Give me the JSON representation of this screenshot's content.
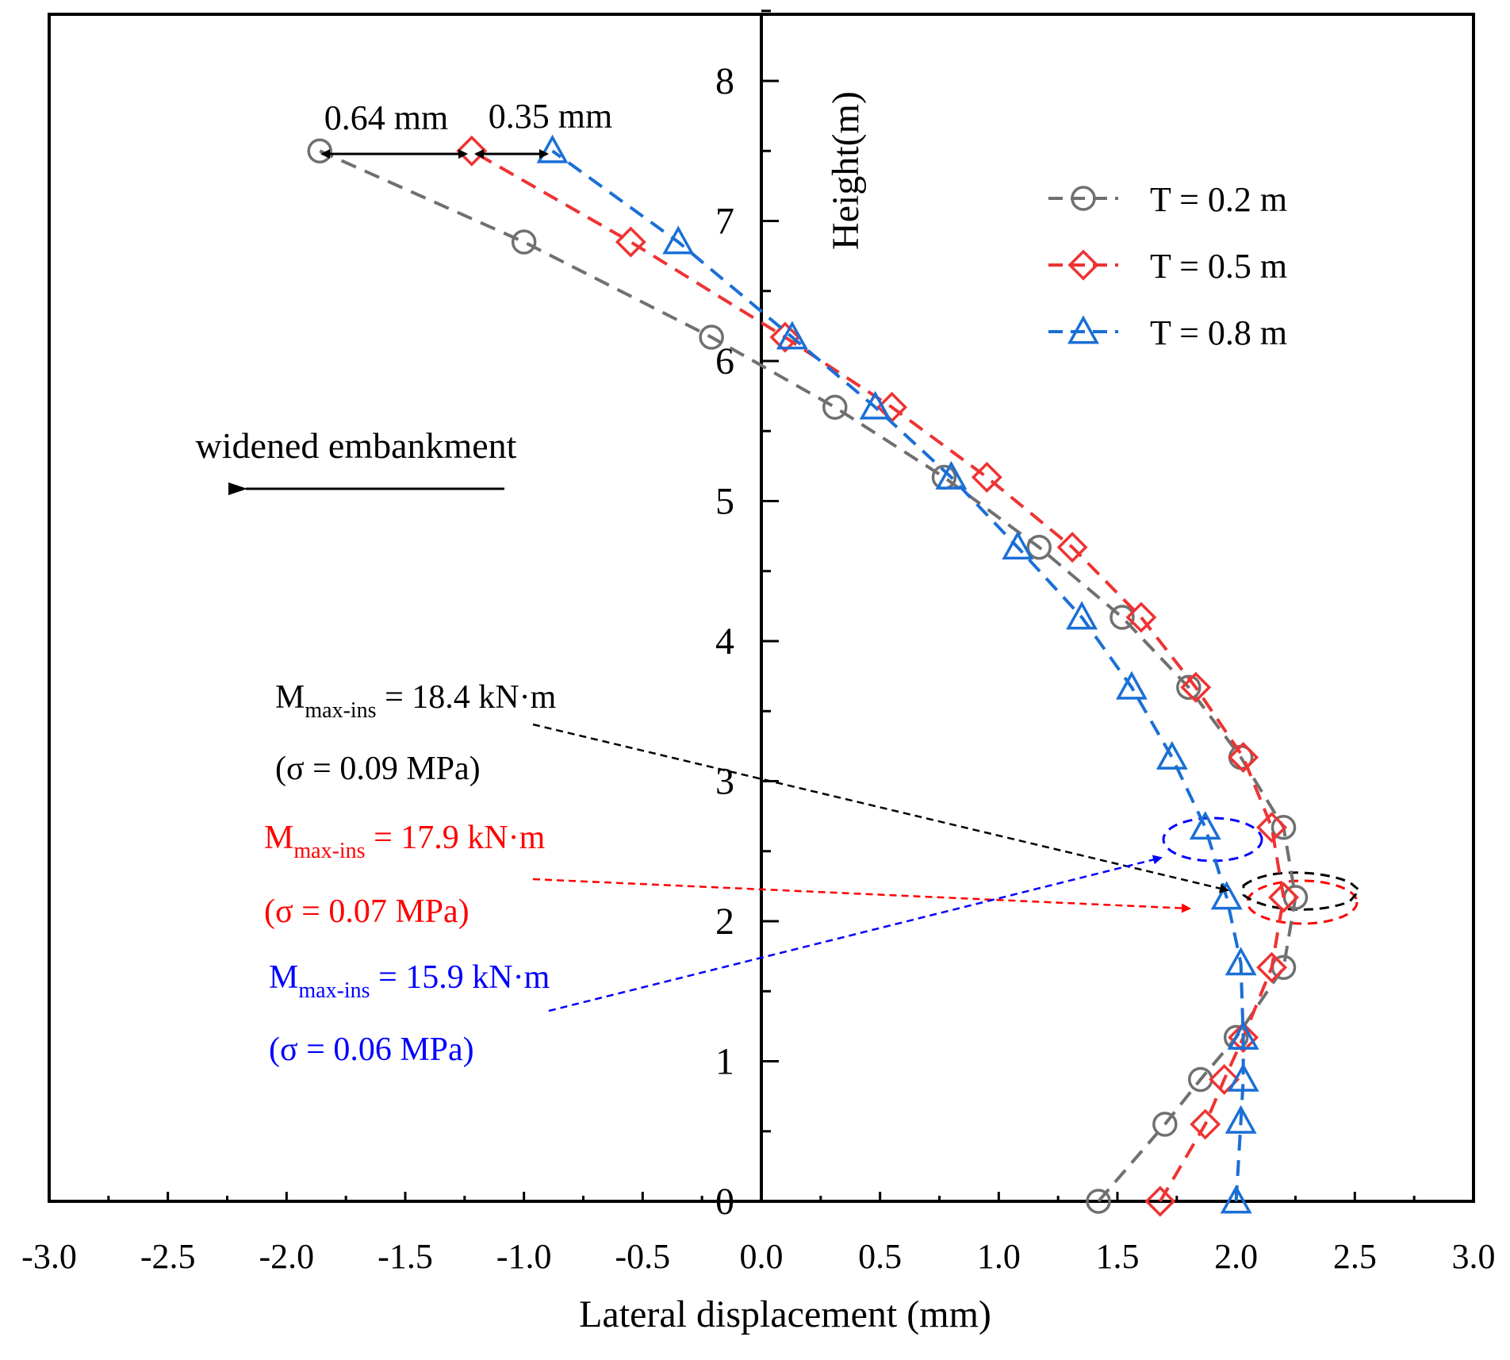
{
  "chart_data": {
    "type": "line",
    "xlabel": "Lateral displacement (mm)",
    "ylabel": "Height(m)",
    "xlim": [
      -3.0,
      3.0
    ],
    "ylim": [
      0,
      8.5
    ],
    "xticks": [
      -3.0,
      -2.5,
      -2.0,
      -1.5,
      -1.0,
      -0.5,
      0.0,
      0.5,
      1.0,
      1.5,
      2.0,
      2.5,
      3.0
    ],
    "xtick_labels": [
      "-3.0",
      "-2.5",
      "-2.0",
      "-1.5",
      "-1.0",
      "-0.5",
      "0.0",
      "0.5",
      "1.0",
      "1.5",
      "2.0",
      "2.5",
      "3.0"
    ],
    "yticks": [
      0,
      1,
      2,
      3,
      4,
      5,
      6,
      7,
      8
    ],
    "ytick_labels": [
      "0",
      "1",
      "2",
      "3",
      "4",
      "5",
      "6",
      "7",
      "8"
    ],
    "series": [
      {
        "name": "T = 0.2 m",
        "color": "#707070",
        "marker": "circle",
        "x": [
          1.42,
          1.7,
          1.85,
          2.0,
          2.2,
          2.25,
          2.2,
          2.02,
          1.8,
          1.52,
          1.17,
          0.77,
          0.31,
          -0.21,
          -1.0,
          -1.86
        ],
        "y": [
          0.0,
          0.55,
          0.87,
          1.17,
          1.67,
          2.17,
          2.67,
          3.17,
          3.67,
          4.17,
          4.67,
          5.17,
          5.67,
          6.17,
          6.85,
          7.5
        ]
      },
      {
        "name": "T = 0.5 m",
        "color": "#ee3333",
        "marker": "diamond",
        "x": [
          1.68,
          1.87,
          1.95,
          2.03,
          2.15,
          2.2,
          2.15,
          2.03,
          1.83,
          1.6,
          1.31,
          0.95,
          0.55,
          0.1,
          -0.55,
          -1.22
        ],
        "y": [
          0.0,
          0.55,
          0.87,
          1.17,
          1.67,
          2.17,
          2.67,
          3.17,
          3.67,
          4.17,
          4.67,
          5.17,
          5.67,
          6.17,
          6.85,
          7.5
        ]
      },
      {
        "name": "T = 0.8 m",
        "color": "#1a6fd6",
        "marker": "triangle",
        "x": [
          2.0,
          2.02,
          2.03,
          2.03,
          2.02,
          1.96,
          1.87,
          1.73,
          1.56,
          1.35,
          1.08,
          0.8,
          0.48,
          0.13,
          -0.35,
          -0.88
        ],
        "y": [
          0.0,
          0.57,
          0.87,
          1.17,
          1.7,
          2.17,
          2.67,
          3.17,
          3.67,
          4.17,
          4.67,
          5.17,
          5.67,
          6.17,
          6.85,
          7.5
        ]
      }
    ],
    "legend": {
      "position": "top-right",
      "entries": [
        "T = 0.2 m",
        "T = 0.5 m",
        "T = 0.8 m"
      ]
    },
    "annotations": {
      "gap1": "0.64 mm",
      "gap2": "0.35 mm",
      "direction": "widened embankment",
      "moment_black": {
        "m": "M",
        "sub": "max-ins",
        "value": " = 18.4 kN·m",
        "sigma": "(σ = 0.09 MPa)",
        "color": "#000000"
      },
      "moment_red": {
        "m": "M",
        "sub": "max-ins",
        "value": " = 17.9 kN·m",
        "sigma": "(σ = 0.07 MPa)",
        "color": "#ff0000"
      },
      "moment_blue": {
        "m": "M",
        "sub": "max-ins",
        "value": " = 15.9 kN·m",
        "sigma": "(σ = 0.06 MPa)",
        "color": "#0000ff"
      }
    }
  }
}
